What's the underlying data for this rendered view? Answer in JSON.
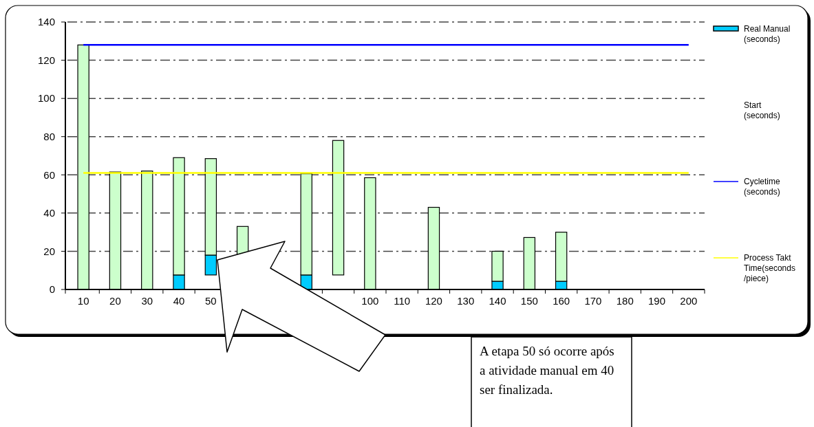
{
  "chart_data": {
    "type": "bar",
    "categories": [
      "10",
      "20",
      "30",
      "40",
      "50",
      null,
      null,
      null,
      null,
      "100",
      "110",
      "120",
      "130",
      "140",
      "150",
      "160",
      "170",
      "180",
      "190",
      "200"
    ],
    "series": [
      {
        "name": "Real Manual (seconds)",
        "color": "#00ccff",
        "base": [
          null,
          null,
          null,
          0,
          7.6,
          null,
          null,
          0,
          null,
          null,
          null,
          null,
          null,
          0,
          null,
          0,
          null,
          null,
          null,
          null
        ],
        "values": [
          null,
          null,
          null,
          7.6,
          10.4,
          null,
          null,
          7.6,
          null,
          null,
          null,
          null,
          null,
          4.3,
          null,
          4.3,
          null,
          null,
          null,
          null
        ]
      },
      {
        "color": "#ccffcc",
        "base": [
          0,
          0,
          0,
          7.6,
          18,
          0,
          null,
          7.6,
          7.6,
          0,
          null,
          0,
          null,
          4.3,
          0,
          4.3,
          null,
          null,
          null,
          null
        ],
        "values": [
          128,
          61.5,
          62,
          61.4,
          50.5,
          33,
          null,
          53,
          70.4,
          58.5,
          null,
          43,
          null,
          15.7,
          27.2,
          25.7,
          null,
          null,
          null,
          null
        ]
      },
      {
        "name": "Cycletime (seconds)",
        "type": "line",
        "color": "#0000ff",
        "values": [
          128,
          128,
          128,
          128,
          128,
          128,
          128,
          128,
          128,
          128,
          128,
          128,
          128,
          128,
          128,
          128,
          128,
          128,
          128,
          128
        ]
      },
      {
        "name": "Process Takt Time(seconds/piece)",
        "type": "line",
        "color": "#ffff00",
        "values": [
          61,
          61,
          61,
          61,
          61,
          61,
          61,
          61,
          61,
          61,
          61,
          61,
          61,
          61,
          61,
          61,
          61,
          61,
          61,
          61
        ]
      }
    ],
    "ylim": [
      0,
      140
    ],
    "yticks": [
      0,
      20,
      40,
      60,
      80,
      100,
      120,
      140
    ],
    "grid": "y",
    "legend": "right",
    "annotations": [
      "A etapa 50 só ocorre após a atividade manual em 40 ser finalizada.",
      "Start (seconds)"
    ]
  }
}
